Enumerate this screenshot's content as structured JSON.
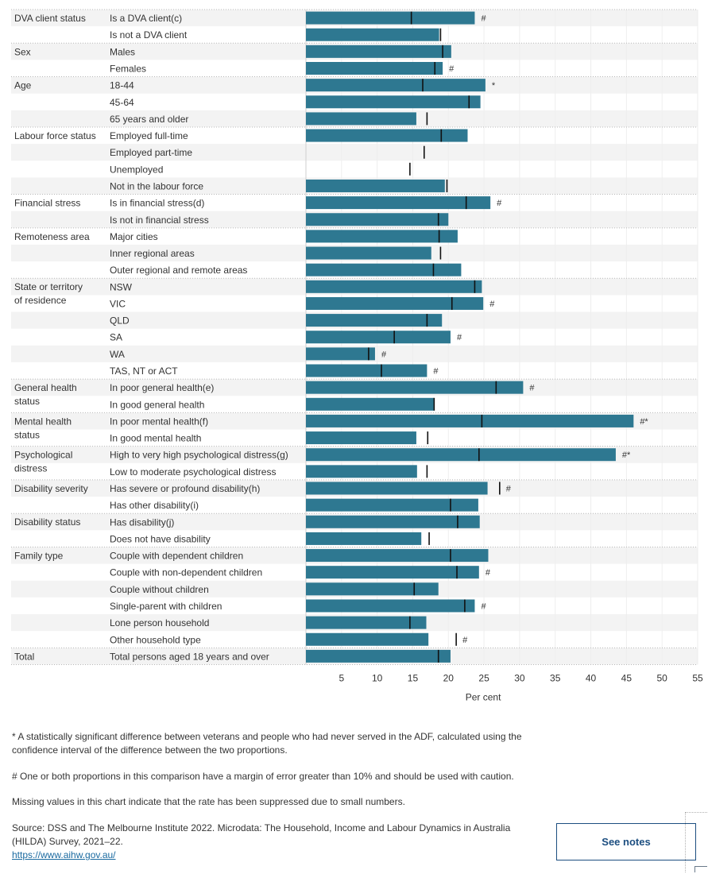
{
  "colors": {
    "bar": "#2e7891",
    "marker": "#111111",
    "stripe": "#f3f3f3",
    "text": "#333333",
    "grid": "#d6d6d6"
  },
  "chart_data": {
    "type": "bar",
    "orientation": "horizontal",
    "xlabel": "Per cent",
    "xlim": [
      0,
      55
    ],
    "xticks": [
      5,
      10,
      15,
      20,
      25,
      30,
      35,
      40,
      45,
      50,
      55
    ],
    "grid": true,
    "reference_marker": "vertical tick",
    "groups": [
      {
        "label": "DVA client status",
        "rows": [
          {
            "label": "Is a DVA client(c)",
            "value": 23.7,
            "marker": 14.8,
            "flag": "#"
          },
          {
            "label": "Is not a DVA client",
            "value": 18.7,
            "marker": 18.9,
            "flag": ""
          }
        ]
      },
      {
        "label": "Sex",
        "rows": [
          {
            "label": "Males",
            "value": 20.4,
            "marker": 19.2,
            "flag": ""
          },
          {
            "label": "Females",
            "value": 19.2,
            "marker": 18.1,
            "flag": "#"
          }
        ]
      },
      {
        "label": "Age",
        "rows": [
          {
            "label": "18-44",
            "value": 25.2,
            "marker": 16.4,
            "flag": "*"
          },
          {
            "label": "45-64",
            "value": 24.5,
            "marker": 22.9,
            "flag": ""
          },
          {
            "label": "65 years and older",
            "value": 15.5,
            "marker": 17.0,
            "flag": ""
          }
        ]
      },
      {
        "label": "Labour force status",
        "rows": [
          {
            "label": "Employed full-time",
            "value": 22.7,
            "marker": 19.0,
            "flag": ""
          },
          {
            "label": "Employed part-time",
            "value": null,
            "marker": 16.6,
            "flag": ""
          },
          {
            "label": "Unemployed",
            "value": null,
            "marker": 14.6,
            "flag": ""
          },
          {
            "label": "Not in the labour force",
            "value": 19.5,
            "marker": 19.8,
            "flag": ""
          }
        ]
      },
      {
        "label": "Financial stress",
        "rows": [
          {
            "label": "Is in financial stress(d)",
            "value": 25.9,
            "marker": 22.5,
            "flag": "#"
          },
          {
            "label": "Is not in financial stress",
            "value": 20.0,
            "marker": 18.6,
            "flag": ""
          }
        ]
      },
      {
        "label": "Remoteness area",
        "rows": [
          {
            "label": "Major cities",
            "value": 21.3,
            "marker": 18.7,
            "flag": ""
          },
          {
            "label": "Inner regional areas",
            "value": 17.6,
            "marker": 18.9,
            "flag": ""
          },
          {
            "label": "Outer regional and remote areas",
            "value": 21.8,
            "marker": 17.9,
            "flag": ""
          }
        ]
      },
      {
        "label": "State or territory of residence",
        "rows": [
          {
            "label": "NSW",
            "value": 24.7,
            "marker": 23.7,
            "flag": ""
          },
          {
            "label": "VIC",
            "value": 24.9,
            "marker": 20.5,
            "flag": "#"
          },
          {
            "label": "QLD",
            "value": 19.1,
            "marker": 17.0,
            "flag": ""
          },
          {
            "label": "SA",
            "value": 20.3,
            "marker": 12.4,
            "flag": "#"
          },
          {
            "label": "WA",
            "value": 9.7,
            "marker": 8.8,
            "flag": "#"
          },
          {
            "label": "TAS, NT or ACT",
            "value": 17.0,
            "marker": 10.6,
            "flag": "#"
          }
        ]
      },
      {
        "label": "General health status",
        "rows": [
          {
            "label": "In poor general health(e)",
            "value": 30.5,
            "marker": 26.7,
            "flag": "#"
          },
          {
            "label": "In good general health",
            "value": 18.0,
            "marker": 18.0,
            "flag": ""
          }
        ]
      },
      {
        "label": "Mental health status",
        "rows": [
          {
            "label": "In poor mental health(f)",
            "value": 46.0,
            "marker": 24.7,
            "flag": "#*"
          },
          {
            "label": "In good mental health",
            "value": 15.5,
            "marker": 17.1,
            "flag": ""
          }
        ]
      },
      {
        "label": "Psychological distress",
        "rows": [
          {
            "label": "High to very high psychological distress(g)",
            "value": 43.5,
            "marker": 24.3,
            "flag": "#*"
          },
          {
            "label": "Low to moderate psychological distress",
            "value": 15.6,
            "marker": 17.0,
            "flag": ""
          }
        ]
      },
      {
        "label": "Disability severity",
        "rows": [
          {
            "label": "Has severe or profound disability(h)",
            "value": 25.5,
            "marker": 27.2,
            "flag": "#"
          },
          {
            "label": "Has other disability(i)",
            "value": 24.2,
            "marker": 20.3,
            "flag": ""
          }
        ]
      },
      {
        "label": "Disability status",
        "rows": [
          {
            "label": "Has disability(j)",
            "value": 24.4,
            "marker": 21.3,
            "flag": ""
          },
          {
            "label": "Does not have disability",
            "value": 16.2,
            "marker": 17.3,
            "flag": ""
          }
        ]
      },
      {
        "label": "Family type",
        "rows": [
          {
            "label": "Couple with dependent children",
            "value": 25.6,
            "marker": 20.3,
            "flag": ""
          },
          {
            "label": "Couple with non-dependent children",
            "value": 24.3,
            "marker": 21.2,
            "flag": "#"
          },
          {
            "label": "Couple without children",
            "value": 18.6,
            "marker": 15.2,
            "flag": ""
          },
          {
            "label": "Single-parent with children",
            "value": 23.7,
            "marker": 22.3,
            "flag": "#"
          },
          {
            "label": "Lone person household",
            "value": 16.9,
            "marker": 14.6,
            "flag": ""
          },
          {
            "label": "Other household type",
            "value": 17.2,
            "marker": 21.1,
            "flag": "#"
          }
        ]
      },
      {
        "label": "Total",
        "rows": [
          {
            "label": "Total persons aged 18 years and over",
            "value": 20.3,
            "marker": 18.6,
            "flag": ""
          }
        ]
      }
    ]
  },
  "footnotes": {
    "star": "* A statistically significant difference between veterans and people who had never served in the ADF, calculated using the confidence interval of the difference between the two proportions.",
    "hash": "# One or both proportions in this comparison have a margin of error greater than 10% and should be used with caution.",
    "missing": "Missing values in this chart indicate that the rate has been suppressed due to small numbers.",
    "source": "Source: DSS and The Melbourne Institute 2022. Microdata: The Household, Income and Labour Dynamics in Australia (HILDA) Survey, 2021–22.",
    "link": "https://www.aihw.gov.au/"
  },
  "see_notes_label": "See notes"
}
